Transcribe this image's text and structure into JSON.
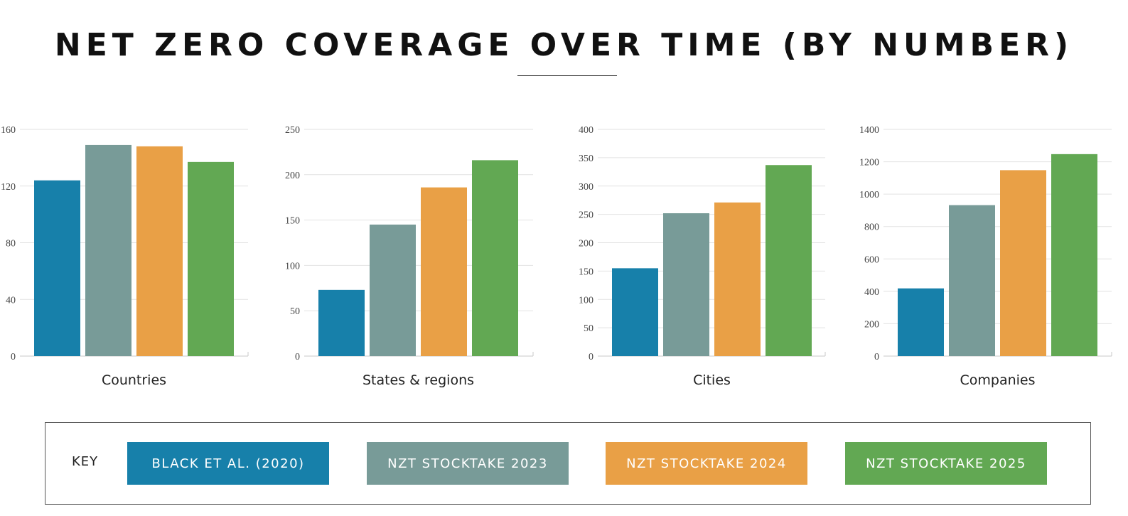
{
  "title": "NET ZERO COVERAGE OVER TIME (BY NUMBER)",
  "legend": {
    "key_label": "KEY",
    "items": [
      {
        "label": "BLACK ET AL. (2020)",
        "color": "#1780aa"
      },
      {
        "label": "NZT STOCKTAKE 2023",
        "color": "#789b98"
      },
      {
        "label": "NZT STOCKTAKE 2024",
        "color": "#e9a046"
      },
      {
        "label": "NZT STOCKTAKE 2025",
        "color": "#62a853"
      }
    ]
  },
  "chart_data": [
    {
      "type": "bar",
      "category": "Countries",
      "series": [
        "BLACK ET AL. (2020)",
        "NZT STOCKTAKE 2023",
        "NZT STOCKTAKE 2024",
        "NZT STOCKTAKE 2025"
      ],
      "values": [
        124,
        149,
        148,
        137
      ],
      "ylim": [
        0,
        160
      ],
      "yticks": [
        0,
        40,
        80,
        120,
        160
      ],
      "grid": true
    },
    {
      "type": "bar",
      "category": "States & regions",
      "series": [
        "BLACK ET AL. (2020)",
        "NZT STOCKTAKE 2023",
        "NZT STOCKTAKE 2024",
        "NZT STOCKTAKE 2025"
      ],
      "values": [
        73,
        145,
        186,
        216
      ],
      "ylim": [
        0,
        250
      ],
      "yticks": [
        0,
        50,
        100,
        150,
        200,
        250
      ],
      "grid": true
    },
    {
      "type": "bar",
      "category": "Cities",
      "series": [
        "BLACK ET AL. (2020)",
        "NZT STOCKTAKE 2023",
        "NZT STOCKTAKE 2024",
        "NZT STOCKTAKE 2025"
      ],
      "values": [
        155,
        252,
        271,
        337
      ],
      "ylim": [
        0,
        400
      ],
      "yticks": [
        0,
        50,
        100,
        150,
        200,
        250,
        300,
        350,
        400
      ],
      "grid": true
    },
    {
      "type": "bar",
      "category": "Companies",
      "series": [
        "BLACK ET AL. (2020)",
        "NZT STOCKTAKE 2023",
        "NZT STOCKTAKE 2024",
        "NZT STOCKTAKE 2025"
      ],
      "values": [
        418,
        932,
        1148,
        1247
      ],
      "ylim": [
        0,
        1400
      ],
      "yticks": [
        0,
        200,
        400,
        600,
        800,
        1000,
        1200,
        1400
      ],
      "grid": true
    }
  ]
}
